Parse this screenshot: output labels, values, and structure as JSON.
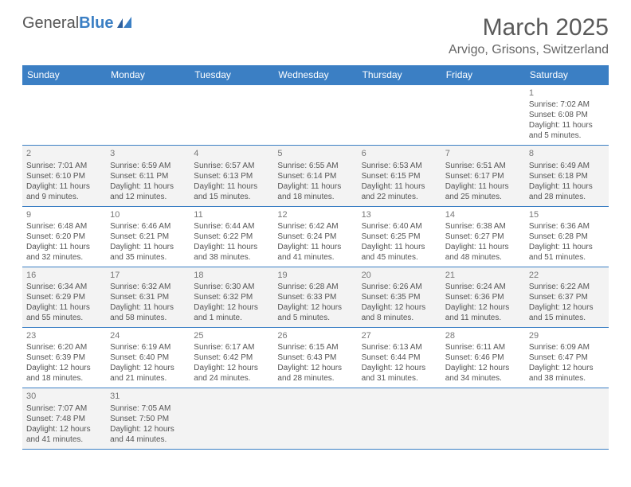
{
  "logo": {
    "text1": "General",
    "text2": "Blue"
  },
  "title": "March 2025",
  "location": "Arvigo, Grisons, Switzerland",
  "colors": {
    "header_bg": "#3b7fc4",
    "header_fg": "#ffffff",
    "cell_border": "#3b7fc4",
    "alt_row": "#f3f3f3",
    "text": "#555555",
    "title": "#5a5a5a"
  },
  "day_names": [
    "Sunday",
    "Monday",
    "Tuesday",
    "Wednesday",
    "Thursday",
    "Friday",
    "Saturday"
  ],
  "weeks": [
    [
      null,
      null,
      null,
      null,
      null,
      null,
      {
        "n": "1",
        "sr": "Sunrise: 7:02 AM",
        "ss": "Sunset: 6:08 PM",
        "dl": "Daylight: 11 hours and 5 minutes."
      }
    ],
    [
      {
        "n": "2",
        "sr": "Sunrise: 7:01 AM",
        "ss": "Sunset: 6:10 PM",
        "dl": "Daylight: 11 hours and 9 minutes."
      },
      {
        "n": "3",
        "sr": "Sunrise: 6:59 AM",
        "ss": "Sunset: 6:11 PM",
        "dl": "Daylight: 11 hours and 12 minutes."
      },
      {
        "n": "4",
        "sr": "Sunrise: 6:57 AM",
        "ss": "Sunset: 6:13 PM",
        "dl": "Daylight: 11 hours and 15 minutes."
      },
      {
        "n": "5",
        "sr": "Sunrise: 6:55 AM",
        "ss": "Sunset: 6:14 PM",
        "dl": "Daylight: 11 hours and 18 minutes."
      },
      {
        "n": "6",
        "sr": "Sunrise: 6:53 AM",
        "ss": "Sunset: 6:15 PM",
        "dl": "Daylight: 11 hours and 22 minutes."
      },
      {
        "n": "7",
        "sr": "Sunrise: 6:51 AM",
        "ss": "Sunset: 6:17 PM",
        "dl": "Daylight: 11 hours and 25 minutes."
      },
      {
        "n": "8",
        "sr": "Sunrise: 6:49 AM",
        "ss": "Sunset: 6:18 PM",
        "dl": "Daylight: 11 hours and 28 minutes."
      }
    ],
    [
      {
        "n": "9",
        "sr": "Sunrise: 6:48 AM",
        "ss": "Sunset: 6:20 PM",
        "dl": "Daylight: 11 hours and 32 minutes."
      },
      {
        "n": "10",
        "sr": "Sunrise: 6:46 AM",
        "ss": "Sunset: 6:21 PM",
        "dl": "Daylight: 11 hours and 35 minutes."
      },
      {
        "n": "11",
        "sr": "Sunrise: 6:44 AM",
        "ss": "Sunset: 6:22 PM",
        "dl": "Daylight: 11 hours and 38 minutes."
      },
      {
        "n": "12",
        "sr": "Sunrise: 6:42 AM",
        "ss": "Sunset: 6:24 PM",
        "dl": "Daylight: 11 hours and 41 minutes."
      },
      {
        "n": "13",
        "sr": "Sunrise: 6:40 AM",
        "ss": "Sunset: 6:25 PM",
        "dl": "Daylight: 11 hours and 45 minutes."
      },
      {
        "n": "14",
        "sr": "Sunrise: 6:38 AM",
        "ss": "Sunset: 6:27 PM",
        "dl": "Daylight: 11 hours and 48 minutes."
      },
      {
        "n": "15",
        "sr": "Sunrise: 6:36 AM",
        "ss": "Sunset: 6:28 PM",
        "dl": "Daylight: 11 hours and 51 minutes."
      }
    ],
    [
      {
        "n": "16",
        "sr": "Sunrise: 6:34 AM",
        "ss": "Sunset: 6:29 PM",
        "dl": "Daylight: 11 hours and 55 minutes."
      },
      {
        "n": "17",
        "sr": "Sunrise: 6:32 AM",
        "ss": "Sunset: 6:31 PM",
        "dl": "Daylight: 11 hours and 58 minutes."
      },
      {
        "n": "18",
        "sr": "Sunrise: 6:30 AM",
        "ss": "Sunset: 6:32 PM",
        "dl": "Daylight: 12 hours and 1 minute."
      },
      {
        "n": "19",
        "sr": "Sunrise: 6:28 AM",
        "ss": "Sunset: 6:33 PM",
        "dl": "Daylight: 12 hours and 5 minutes."
      },
      {
        "n": "20",
        "sr": "Sunrise: 6:26 AM",
        "ss": "Sunset: 6:35 PM",
        "dl": "Daylight: 12 hours and 8 minutes."
      },
      {
        "n": "21",
        "sr": "Sunrise: 6:24 AM",
        "ss": "Sunset: 6:36 PM",
        "dl": "Daylight: 12 hours and 11 minutes."
      },
      {
        "n": "22",
        "sr": "Sunrise: 6:22 AM",
        "ss": "Sunset: 6:37 PM",
        "dl": "Daylight: 12 hours and 15 minutes."
      }
    ],
    [
      {
        "n": "23",
        "sr": "Sunrise: 6:20 AM",
        "ss": "Sunset: 6:39 PM",
        "dl": "Daylight: 12 hours and 18 minutes."
      },
      {
        "n": "24",
        "sr": "Sunrise: 6:19 AM",
        "ss": "Sunset: 6:40 PM",
        "dl": "Daylight: 12 hours and 21 minutes."
      },
      {
        "n": "25",
        "sr": "Sunrise: 6:17 AM",
        "ss": "Sunset: 6:42 PM",
        "dl": "Daylight: 12 hours and 24 minutes."
      },
      {
        "n": "26",
        "sr": "Sunrise: 6:15 AM",
        "ss": "Sunset: 6:43 PM",
        "dl": "Daylight: 12 hours and 28 minutes."
      },
      {
        "n": "27",
        "sr": "Sunrise: 6:13 AM",
        "ss": "Sunset: 6:44 PM",
        "dl": "Daylight: 12 hours and 31 minutes."
      },
      {
        "n": "28",
        "sr": "Sunrise: 6:11 AM",
        "ss": "Sunset: 6:46 PM",
        "dl": "Daylight: 12 hours and 34 minutes."
      },
      {
        "n": "29",
        "sr": "Sunrise: 6:09 AM",
        "ss": "Sunset: 6:47 PM",
        "dl": "Daylight: 12 hours and 38 minutes."
      }
    ],
    [
      {
        "n": "30",
        "sr": "Sunrise: 7:07 AM",
        "ss": "Sunset: 7:48 PM",
        "dl": "Daylight: 12 hours and 41 minutes."
      },
      {
        "n": "31",
        "sr": "Sunrise: 7:05 AM",
        "ss": "Sunset: 7:50 PM",
        "dl": "Daylight: 12 hours and 44 minutes."
      },
      null,
      null,
      null,
      null,
      null
    ]
  ]
}
